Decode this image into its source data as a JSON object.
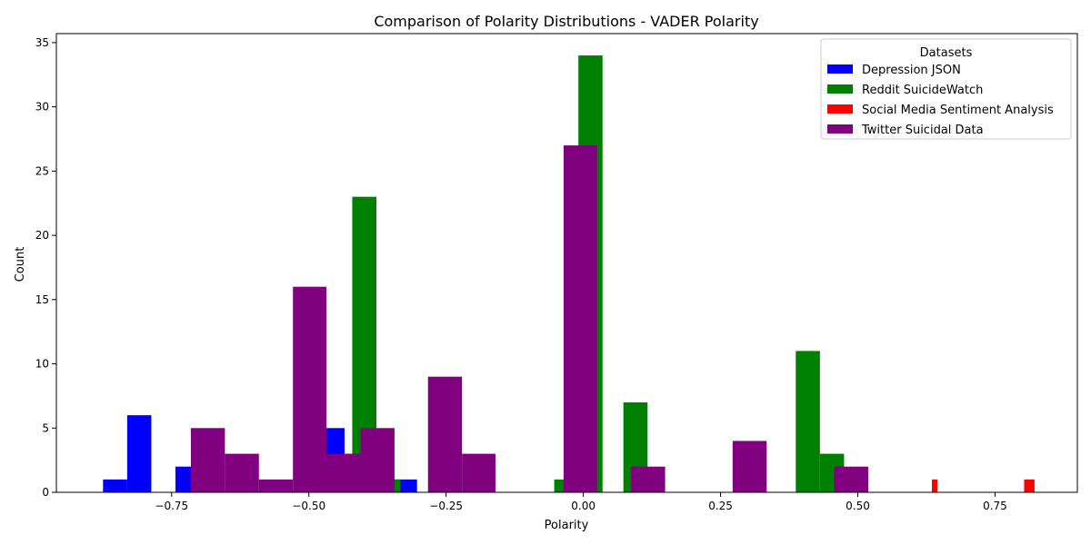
{
  "chart_data": {
    "type": "bar",
    "title": "Comparison of Polarity Distributions - VADER Polarity",
    "xlabel": "Polarity",
    "ylabel": "Count",
    "xlim": [
      -0.96,
      0.9
    ],
    "ylim": [
      0,
      35.7
    ],
    "xticks": [
      -0.75,
      -0.5,
      -0.25,
      0.0,
      0.25,
      0.5,
      0.75
    ],
    "xtick_labels": [
      "−0.75",
      "−0.50",
      "−0.25",
      "0.00",
      "0.25",
      "0.50",
      "0.75"
    ],
    "yticks": [
      0,
      5,
      10,
      15,
      20,
      25,
      30,
      35
    ],
    "ytick_labels": [
      "0",
      "5",
      "10",
      "15",
      "20",
      "25",
      "30",
      "35"
    ],
    "grid": false,
    "legend": {
      "title": "Datasets",
      "placement": "top-right"
    },
    "series": [
      {
        "name": "Depression JSON",
        "color": "#0000ff",
        "bins": [
          {
            "x0": -0.875,
            "x1": -0.831,
            "count": 1
          },
          {
            "x0": -0.831,
            "x1": -0.787,
            "count": 6
          },
          {
            "x0": -0.743,
            "x1": -0.699,
            "count": 2
          },
          {
            "x0": -0.479,
            "x1": -0.435,
            "count": 5
          },
          {
            "x0": -0.435,
            "x1": -0.391,
            "count": 3
          },
          {
            "x0": -0.347,
            "x1": -0.303,
            "count": 1
          }
        ]
      },
      {
        "name": "Reddit SuicideWatch",
        "color": "#008000",
        "bins": [
          {
            "x0": -0.421,
            "x1": -0.377,
            "count": 23
          },
          {
            "x0": -0.377,
            "x1": -0.333,
            "count": 1
          },
          {
            "x0": -0.053,
            "x1": -0.009,
            "count": 1
          },
          {
            "x0": -0.009,
            "x1": 0.035,
            "count": 34
          },
          {
            "x0": 0.073,
            "x1": 0.117,
            "count": 7
          },
          {
            "x0": 0.387,
            "x1": 0.431,
            "count": 11
          },
          {
            "x0": 0.431,
            "x1": 0.475,
            "count": 3
          }
        ]
      },
      {
        "name": "Social Media Sentiment Analysis",
        "color": "#ff0000",
        "bins": [
          {
            "x0": 0.635,
            "x1": 0.645,
            "count": 1
          },
          {
            "x0": 0.803,
            "x1": 0.822,
            "count": 1
          }
        ]
      },
      {
        "name": "Twitter Suicidal Data",
        "color": "#800080",
        "bins": [
          {
            "x0": -0.715,
            "x1": -0.653,
            "count": 5
          },
          {
            "x0": -0.653,
            "x1": -0.591,
            "count": 3
          },
          {
            "x0": -0.591,
            "x1": -0.529,
            "count": 1
          },
          {
            "x0": -0.529,
            "x1": -0.468,
            "count": 16
          },
          {
            "x0": -0.468,
            "x1": -0.406,
            "count": 3
          },
          {
            "x0": -0.406,
            "x1": -0.344,
            "count": 5
          },
          {
            "x0": -0.283,
            "x1": -0.221,
            "count": 9
          },
          {
            "x0": -0.221,
            "x1": -0.16,
            "count": 3
          },
          {
            "x0": -0.036,
            "x1": 0.025,
            "count": 27
          },
          {
            "x0": 0.087,
            "x1": 0.149,
            "count": 2
          },
          {
            "x0": 0.272,
            "x1": 0.334,
            "count": 4
          },
          {
            "x0": 0.457,
            "x1": 0.519,
            "count": 2
          }
        ]
      }
    ]
  }
}
